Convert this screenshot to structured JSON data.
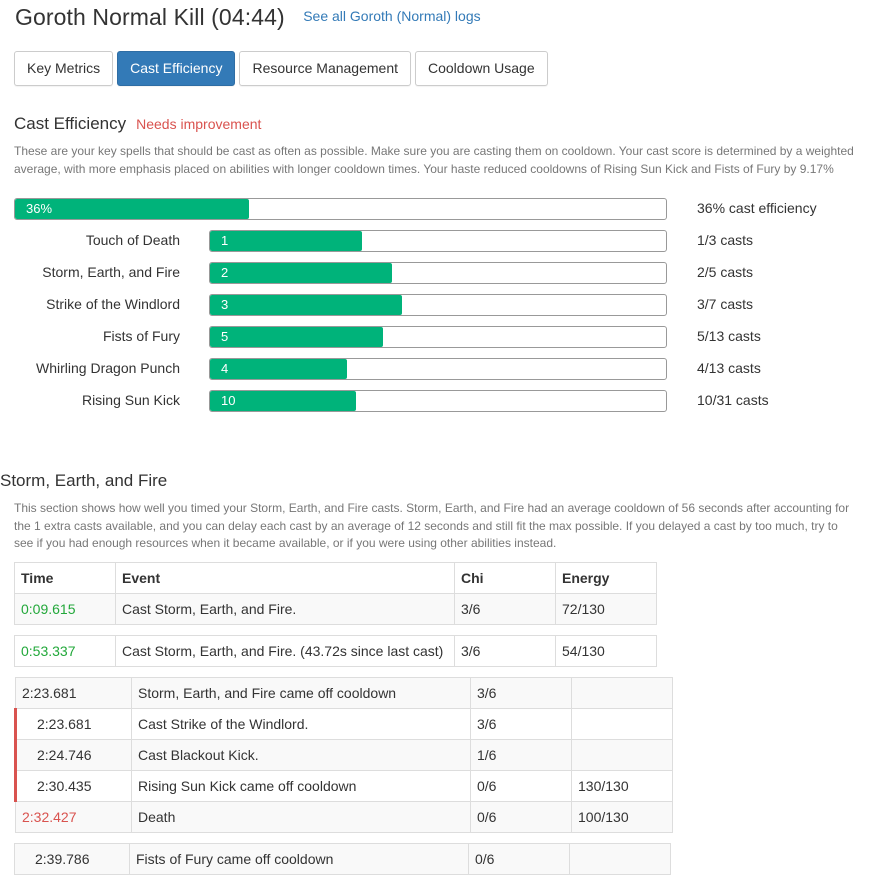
{
  "header": {
    "title": "Goroth Normal Kill (04:44)",
    "logs_link": "See all Goroth (Normal) logs"
  },
  "tabs": [
    "Key Metrics",
    "Cast Efficiency",
    "Resource Management",
    "Cooldown Usage"
  ],
  "cast_efficiency": {
    "title": "Cast Efficiency",
    "status": "Needs improvement",
    "description": "These are your key spells that should be cast as often as possible. Make sure you are casting them on cooldown. Your cast score is determined by a weighted average, with more emphasis placed on abilities with longer cooldown times. Your haste reduced cooldowns of Rising Sun Kick and Fists of Fury by 9.17%",
    "overall": {
      "label": "36%",
      "fraction": 0.36,
      "value_text": "36% cast efficiency"
    },
    "spells": [
      {
        "name": "Touch of Death",
        "casts": "1",
        "fraction": 0.333,
        "value_text": "1/3 casts"
      },
      {
        "name": "Storm, Earth, and Fire",
        "casts": "2",
        "fraction": 0.4,
        "value_text": "2/5 casts"
      },
      {
        "name": "Strike of the Windlord",
        "casts": "3",
        "fraction": 0.42,
        "value_text": "3/7 casts"
      },
      {
        "name": "Fists of Fury",
        "casts": "5",
        "fraction": 0.38,
        "value_text": "5/13 casts"
      },
      {
        "name": "Whirling Dragon Punch",
        "casts": "4",
        "fraction": 0.3,
        "value_text": "4/13 casts"
      },
      {
        "name": "Rising Sun Kick",
        "casts": "10",
        "fraction": 0.32,
        "value_text": "10/31 casts"
      }
    ]
  },
  "sef": {
    "title": "Storm, Earth, and Fire",
    "description": "This section shows how well you timed your Storm, Earth, and Fire casts. Storm, Earth, and Fire had an average cooldown of 56 seconds after accounting for the 1 extra casts available, and you can delay each cast by an average of 12 seconds and still fit the max possible. If you delayed a cast by too much, try to see if you had enough resources when it became available, or if you were using other abilities instead.",
    "columns": [
      "Time",
      "Event",
      "Chi",
      "Energy"
    ],
    "groups": [
      [
        {
          "time": "0:09.615",
          "event": "Cast Storm, Earth, and Fire.",
          "chi": "3/6",
          "energy": "72/130",
          "style": "green"
        }
      ],
      [
        {
          "time": "0:53.337",
          "event": "Cast Storm, Earth, and Fire. (43.72s since last cast)",
          "chi": "3/6",
          "energy": "54/130",
          "style": "green"
        }
      ],
      [
        {
          "time": "2:23.681",
          "event": "Storm, Earth, and Fire came off cooldown",
          "chi": "3/6",
          "energy": "",
          "style": "normal"
        },
        {
          "time": "2:23.681",
          "event": "Cast Strike of the Windlord.",
          "chi": "3/6",
          "energy": "",
          "style": "indent"
        },
        {
          "time": "2:24.746",
          "event": "Cast Blackout Kick.",
          "chi": "1/6",
          "energy": "",
          "style": "indent"
        },
        {
          "time": "2:30.435",
          "event": "Rising Sun Kick came off cooldown",
          "chi": "0/6",
          "energy": "130/130",
          "style": "indent"
        },
        {
          "time": "2:32.427",
          "event": "Death",
          "chi": "0/6",
          "energy": "100/130",
          "style": "red"
        }
      ],
      [
        {
          "time": "2:39.786",
          "event": "Fists of Fury came off cooldown",
          "chi": "0/6",
          "energy": "",
          "style": "normal"
        }
      ]
    ]
  }
}
